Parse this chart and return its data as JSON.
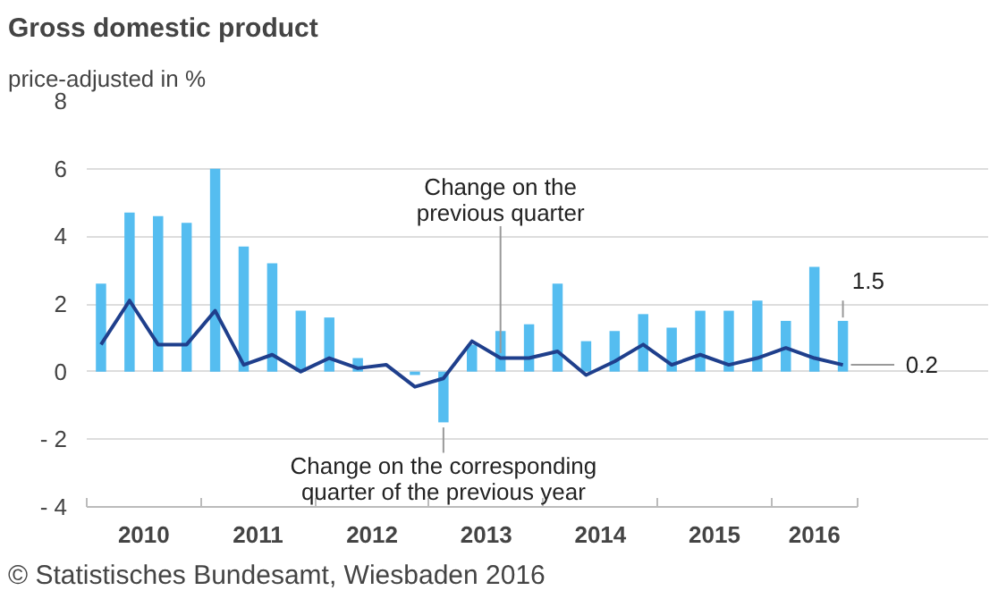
{
  "chart_data": {
    "type": "bar",
    "title": "Gross domestic product",
    "subtitle": "price-adjusted in %",
    "x": [
      2010.125,
      2010.375,
      2010.625,
      2010.875,
      2011.125,
      2011.375,
      2011.625,
      2011.875,
      2012.125,
      2012.375,
      2012.625,
      2012.875,
      2013.125,
      2013.375,
      2013.625,
      2013.875,
      2014.125,
      2014.375,
      2014.625,
      2014.875,
      2015.125,
      2015.375,
      2015.625,
      2015.875,
      2016.125,
      2016.375,
      2016.625
    ],
    "series": [
      {
        "color": "#55bdf0",
        "values": [
          2.6,
          4.7,
          4.6,
          4.4,
          6.0,
          3.7,
          3.2,
          1.8,
          1.6,
          0.4,
          0.0,
          -0.1,
          -1.5,
          0.8,
          1.2,
          1.4,
          2.6,
          0.9,
          1.2,
          1.7,
          1.3,
          1.8,
          1.8,
          2.1,
          1.5,
          3.1,
          1.5
        ]
      },
      {
        "type": "line",
        "color": "#1f3f8c",
        "values": [
          0.8,
          2.1,
          0.8,
          0.8,
          1.8,
          0.2,
          0.5,
          0.0,
          0.4,
          0.1,
          0.2,
          -0.45,
          -0.2,
          0.9,
          0.4,
          0.4,
          0.6,
          -0.1,
          0.3,
          0.8,
          0.2,
          0.5,
          0.2,
          0.4,
          0.7,
          0.4,
          0.2
        ]
      }
    ],
    "xlim": [
      2010,
      2016.75
    ],
    "xticks": [
      {
        "value": 2010.5,
        "label": "2010"
      },
      {
        "value": 2011.5,
        "label": "2011"
      },
      {
        "value": 2012.5,
        "label": "2012"
      },
      {
        "value": 2013.5,
        "label": "2013"
      },
      {
        "value": 2014.5,
        "label": "2014"
      },
      {
        "value": 2015.5,
        "label": "2015"
      },
      {
        "value": 2016.375,
        "label": "2016"
      }
    ],
    "ylim": [
      -4,
      8
    ],
    "yticks": [
      {
        "value": -4,
        "label": "- 4"
      },
      {
        "value": -2,
        "label": "- 2"
      },
      0,
      2,
      4,
      6,
      8
    ],
    "grid": "y",
    "annotations": [
      {
        "text": "Change on the\nprevious quarter",
        "x": 2013.625,
        "y": 0.4
      },
      {
        "text": "Change on the corresponding\nquarter of the previous year",
        "x": 2013.125,
        "y": -1.5
      },
      {
        "text": "1.5",
        "x": 2016.625,
        "y": 1.5
      },
      {
        "text": "0.2",
        "x": 2016.625,
        "y": 0.2
      },
      "© Statistisches Bundesamt, Wiesbaden 2016"
    ]
  }
}
